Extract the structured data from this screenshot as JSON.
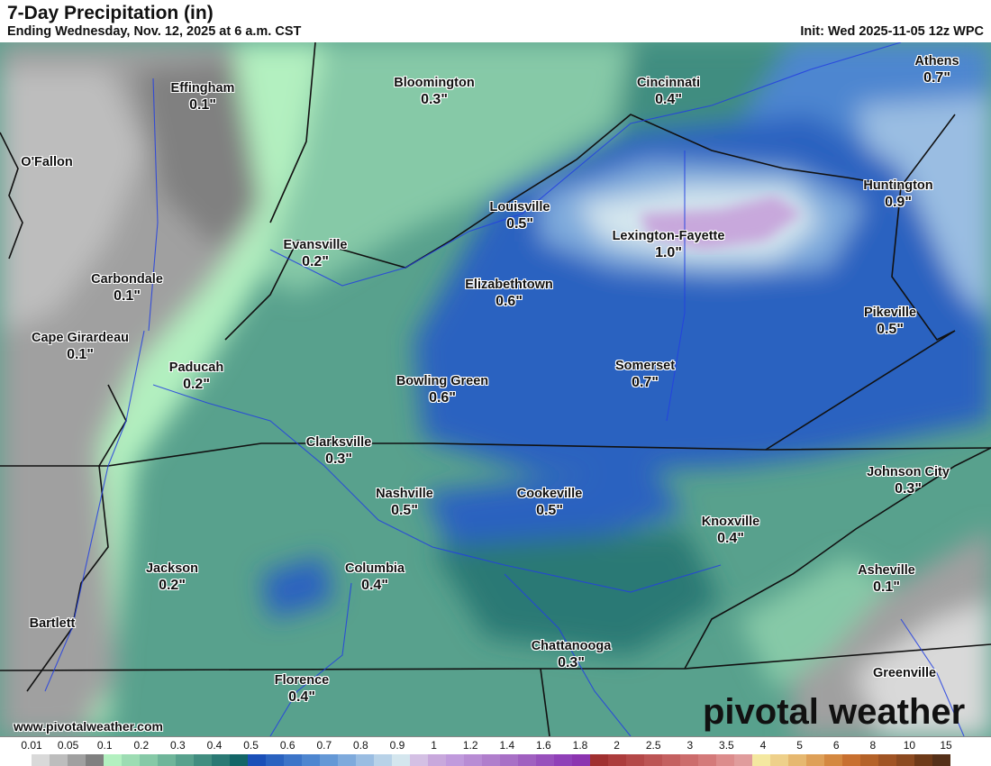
{
  "header": {
    "title": "7-Day Precipitation (in)",
    "subtitle": "Ending Wednesday, Nov. 12, 2025 at 6 a.m. CST",
    "init": "Init: Wed 2025-11-05 12z WPC"
  },
  "cities": [
    {
      "name": "Effingham",
      "value": "0.1\""
    },
    {
      "name": "Bloomington",
      "value": "0.3\""
    },
    {
      "name": "Cincinnati",
      "value": "0.4\""
    },
    {
      "name": "Athens",
      "value": "0.7\""
    },
    {
      "name": "O'Fallon",
      "value": ""
    },
    {
      "name": "Huntington",
      "value": "0.9\""
    },
    {
      "name": "Louisville",
      "value": "0.5\""
    },
    {
      "name": "Lexington-Fayette",
      "value": "1.0\""
    },
    {
      "name": "Evansville",
      "value": "0.2\""
    },
    {
      "name": "Carbondale",
      "value": "0.1\""
    },
    {
      "name": "Elizabethtown",
      "value": "0.6\""
    },
    {
      "name": "Pikeville",
      "value": "0.5\""
    },
    {
      "name": "Cape Girardeau",
      "value": "0.1\""
    },
    {
      "name": "Paducah",
      "value": "0.2\""
    },
    {
      "name": "Somerset",
      "value": "0.7\""
    },
    {
      "name": "Bowling Green",
      "value": "0.6\""
    },
    {
      "name": "Clarksville",
      "value": "0.3\""
    },
    {
      "name": "Johnson City",
      "value": "0.3\""
    },
    {
      "name": "Nashville",
      "value": "0.5\""
    },
    {
      "name": "Cookeville",
      "value": "0.5\""
    },
    {
      "name": "Knoxville",
      "value": "0.4\""
    },
    {
      "name": "Jackson",
      "value": "0.2\""
    },
    {
      "name": "Columbia",
      "value": "0.4\""
    },
    {
      "name": "Asheville",
      "value": "0.1\""
    },
    {
      "name": "Bartlett",
      "value": ""
    },
    {
      "name": "Chattanooga",
      "value": "0.3\""
    },
    {
      "name": "Florence",
      "value": "0.4\""
    },
    {
      "name": "Greenville",
      "value": ""
    }
  ],
  "footer": {
    "website": "www.pivotalweather.com",
    "logo": "pivotal weather"
  },
  "legend": {
    "labels": [
      "0.01",
      "0.05",
      "0.1",
      "0.2",
      "0.3",
      "0.4",
      "0.5",
      "0.6",
      "0.7",
      "0.8",
      "0.9",
      "1",
      "1.2",
      "1.4",
      "1.6",
      "1.8",
      "2",
      "2.5",
      "3",
      "3.5",
      "4",
      "5",
      "6",
      "8",
      "10",
      "15"
    ],
    "colors": [
      "#ffffff",
      "#d9d9d9",
      "#bdbdbd",
      "#a0a0a0",
      "#808080",
      "#b3f0c0",
      "#9ddcb3",
      "#86c9a7",
      "#6fb59a",
      "#58a18d",
      "#418d80",
      "#2a7974",
      "#136567",
      "#1a4fb8",
      "#2a62c0",
      "#3c74c8",
      "#4e86d0",
      "#6498d6",
      "#7eaadc",
      "#9abde2",
      "#b8d2e8",
      "#d4e6ee",
      "#d4c0e4",
      "#c8a8dc",
      "#c09adc",
      "#b88cd4",
      "#b07ecc",
      "#a870c6",
      "#a060c0",
      "#9850bc",
      "#9040b8",
      "#8c34b0",
      "#a03030",
      "#ac3c3c",
      "#b44848",
      "#bc5454",
      "#c46060",
      "#cc6c6c",
      "#d47a7a",
      "#dc8c8c",
      "#e09c9c",
      "#f4e8a0",
      "#eed08a",
      "#e6b870",
      "#dea058",
      "#d48840",
      "#c87030",
      "#b46228",
      "#a05424",
      "#8c4a20",
      "#6e3a18",
      "#553018"
    ]
  }
}
